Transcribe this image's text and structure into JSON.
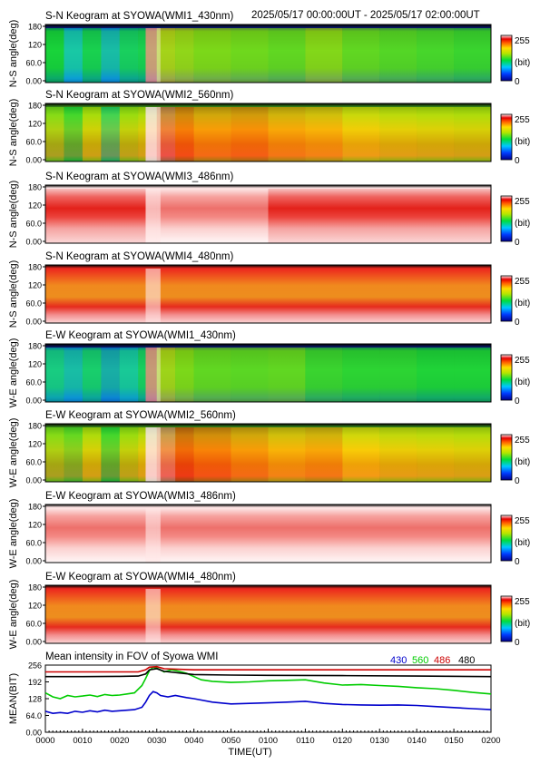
{
  "chart_data": {
    "type": "heatmap",
    "header": {
      "date_range": "2025/05/17 00:00:00UT - 2025/05/17 02:00:00UT"
    },
    "time_range_hhmm": [
      "0000",
      "0200"
    ],
    "colorbar": {
      "max": "255",
      "mid": "(bit)",
      "min": "0"
    },
    "keograms": [
      {
        "title": "S-N Keogram at SYOWA(WMI1_430nm)",
        "ylabel": "N-S angle(deg)",
        "yticks": [
          "180",
          "120",
          "60.0",
          "0.00"
        ],
        "palette": "green",
        "intensity_profile": [
          [
            0,
            0.45
          ],
          [
            5,
            0.3
          ],
          [
            10,
            0.42
          ],
          [
            15,
            0.28
          ],
          [
            20,
            0.4
          ],
          [
            25,
            0.42
          ],
          [
            27,
            0.9
          ],
          [
            30,
            0.72
          ],
          [
            35,
            0.66
          ],
          [
            40,
            0.6
          ],
          [
            50,
            0.58
          ],
          [
            60,
            0.56
          ],
          [
            70,
            0.62
          ],
          [
            80,
            0.56
          ],
          [
            90,
            0.54
          ],
          [
            100,
            0.52
          ],
          [
            110,
            0.5
          ],
          [
            120,
            0.5
          ]
        ]
      },
      {
        "title": "S-N Keogram at SYOWA(WMI2_560nm)",
        "ylabel": "N-S angle(deg)",
        "yticks": [
          "180",
          "120",
          "60.0",
          "0.00"
        ],
        "palette": "mixed",
        "intensity_profile": [
          [
            0,
            0.55
          ],
          [
            5,
            0.45
          ],
          [
            10,
            0.6
          ],
          [
            15,
            0.4
          ],
          [
            20,
            0.58
          ],
          [
            25,
            0.62
          ],
          [
            27,
            1.0
          ],
          [
            30,
            0.95
          ],
          [
            35,
            0.85
          ],
          [
            40,
            0.8
          ],
          [
            50,
            0.82
          ],
          [
            60,
            0.78
          ],
          [
            70,
            0.76
          ],
          [
            80,
            0.7
          ],
          [
            90,
            0.66
          ],
          [
            100,
            0.64
          ],
          [
            110,
            0.62
          ],
          [
            120,
            0.6
          ]
        ]
      },
      {
        "title": "S-N Keogram at SYOWA(WMI3_486nm)",
        "ylabel": "N-S angle(deg)",
        "yticks": [
          "180",
          "120",
          "60.0",
          "0.00"
        ],
        "palette": "red",
        "intensity_profile": [
          [
            0,
            0.9
          ],
          [
            27,
            0.94
          ],
          [
            30,
            0.92
          ],
          [
            60,
            0.9
          ],
          [
            120,
            0.9
          ]
        ]
      },
      {
        "title": "S-N Keogram at SYOWA(WMI4_480nm)",
        "ylabel": "N-S angle(deg)",
        "yticks": [
          "180",
          "120",
          "60.0",
          "0.00"
        ],
        "palette": "red-orange",
        "intensity_profile": [
          [
            0,
            0.8
          ],
          [
            27,
            0.88
          ],
          [
            30,
            0.82
          ],
          [
            60,
            0.8
          ],
          [
            120,
            0.8
          ]
        ]
      },
      {
        "title": "E-W Keogram at SYOWA(WMI1_430nm)",
        "ylabel": "W-E angle(deg)",
        "yticks": [
          "180",
          "120",
          "60.0",
          "0.00"
        ],
        "palette": "green",
        "intensity_profile": [
          [
            0,
            0.35
          ],
          [
            5,
            0.28
          ],
          [
            10,
            0.38
          ],
          [
            15,
            0.25
          ],
          [
            20,
            0.32
          ],
          [
            25,
            0.4
          ],
          [
            27,
            0.92
          ],
          [
            30,
            0.7
          ],
          [
            35,
            0.6
          ],
          [
            40,
            0.56
          ],
          [
            50,
            0.55
          ],
          [
            60,
            0.56
          ],
          [
            70,
            0.5
          ],
          [
            80,
            0.48
          ],
          [
            90,
            0.48
          ],
          [
            100,
            0.46
          ],
          [
            110,
            0.46
          ],
          [
            120,
            0.45
          ]
        ]
      },
      {
        "title": "E-W Keogram at SYOWA(WMI2_560nm)",
        "ylabel": "W-E angle(deg)",
        "yticks": [
          "180",
          "120",
          "60.0",
          "0.00"
        ],
        "palette": "mixed",
        "intensity_profile": [
          [
            0,
            0.55
          ],
          [
            5,
            0.5
          ],
          [
            10,
            0.62
          ],
          [
            15,
            0.45
          ],
          [
            20,
            0.58
          ],
          [
            25,
            0.65
          ],
          [
            27,
            1.0
          ],
          [
            30,
            0.96
          ],
          [
            35,
            0.88
          ],
          [
            40,
            0.84
          ],
          [
            50,
            0.8
          ],
          [
            60,
            0.76
          ],
          [
            70,
            0.78
          ],
          [
            80,
            0.72
          ],
          [
            90,
            0.68
          ],
          [
            100,
            0.66
          ],
          [
            110,
            0.64
          ],
          [
            120,
            0.62
          ]
        ]
      },
      {
        "title": "E-W Keogram at SYOWA(WMI3_486nm)",
        "ylabel": "W-E angle(deg)",
        "yticks": [
          "180",
          "120",
          "60.0",
          "0.00"
        ],
        "palette": "red",
        "intensity_profile": [
          [
            0,
            0.92
          ],
          [
            27,
            0.95
          ],
          [
            30,
            0.92
          ],
          [
            60,
            0.92
          ],
          [
            120,
            0.92
          ]
        ]
      },
      {
        "title": "E-W Keogram at SYOWA(WMI4_480nm)",
        "ylabel": "W-E angle(deg)",
        "yticks": [
          "180",
          "120",
          "60.0",
          "0.00"
        ],
        "palette": "red-orange",
        "intensity_profile": [
          [
            0,
            0.82
          ],
          [
            27,
            0.9
          ],
          [
            30,
            0.84
          ],
          [
            60,
            0.82
          ],
          [
            120,
            0.82
          ]
        ]
      }
    ],
    "mean_plot": {
      "type": "line",
      "title": "Mean intensity in FOV of Syowa WMI",
      "ylabel": "MEAN(BIT)",
      "xlabel": "TIME(UT)",
      "ylim": [
        0,
        256
      ],
      "yticks": [
        "256",
        "192",
        "128",
        "64.0",
        "0.00"
      ],
      "xticks": [
        "0000",
        "0010",
        "0020",
        "0030",
        "0040",
        "0050",
        "0100",
        "0110",
        "0120",
        "0130",
        "0140",
        "0150",
        "0200"
      ],
      "legend": [
        "430",
        "560",
        "486",
        "480"
      ],
      "series": [
        {
          "name": "430",
          "color": "#0000cc",
          "points": [
            [
              0,
              80
            ],
            [
              2,
              72
            ],
            [
              4,
              75
            ],
            [
              6,
              72
            ],
            [
              8,
              80
            ],
            [
              10,
              76
            ],
            [
              12,
              82
            ],
            [
              14,
              78
            ],
            [
              16,
              84
            ],
            [
              18,
              80
            ],
            [
              20,
              82
            ],
            [
              22,
              84
            ],
            [
              24,
              86
            ],
            [
              26,
              95
            ],
            [
              27,
              115
            ],
            [
              28,
              140
            ],
            [
              29,
              155
            ],
            [
              30,
              150
            ],
            [
              31,
              140
            ],
            [
              33,
              135
            ],
            [
              35,
              140
            ],
            [
              38,
              132
            ],
            [
              40,
              128
            ],
            [
              45,
              115
            ],
            [
              50,
              108
            ],
            [
              55,
              110
            ],
            [
              60,
              112
            ],
            [
              65,
              115
            ],
            [
              70,
              118
            ],
            [
              75,
              110
            ],
            [
              80,
              106
            ],
            [
              85,
              104
            ],
            [
              90,
              103
            ],
            [
              95,
              104
            ],
            [
              100,
              102
            ],
            [
              105,
              98
            ],
            [
              110,
              94
            ],
            [
              115,
              90
            ],
            [
              120,
              86
            ]
          ]
        },
        {
          "name": "560",
          "color": "#00cc00",
          "points": [
            [
              0,
              150
            ],
            [
              2,
              135
            ],
            [
              4,
              128
            ],
            [
              6,
              140
            ],
            [
              8,
              135
            ],
            [
              10,
              138
            ],
            [
              12,
              142
            ],
            [
              14,
              136
            ],
            [
              16,
              144
            ],
            [
              18,
              140
            ],
            [
              20,
              142
            ],
            [
              22,
              146
            ],
            [
              24,
              150
            ],
            [
              26,
              178
            ],
            [
              27,
              205
            ],
            [
              28,
              235
            ],
            [
              29,
              248
            ],
            [
              30,
              245
            ],
            [
              32,
              230
            ],
            [
              34,
              238
            ],
            [
              36,
              232
            ],
            [
              38,
              225
            ],
            [
              40,
              212
            ],
            [
              42,
              200
            ],
            [
              45,
              194
            ],
            [
              50,
              190
            ],
            [
              55,
              192
            ],
            [
              60,
              196
            ],
            [
              65,
              198
            ],
            [
              70,
              200
            ],
            [
              75,
              188
            ],
            [
              80,
              180
            ],
            [
              85,
              182
            ],
            [
              90,
              178
            ],
            [
              95,
              175
            ],
            [
              100,
              170
            ],
            [
              105,
              166
            ],
            [
              110,
              160
            ],
            [
              115,
              152
            ],
            [
              120,
              146
            ]
          ]
        },
        {
          "name": "486",
          "color": "#cc0000",
          "points": [
            [
              0,
              230
            ],
            [
              10,
              230
            ],
            [
              20,
              230
            ],
            [
              25,
              230
            ],
            [
              27,
              238
            ],
            [
              28,
              248
            ],
            [
              30,
              250
            ],
            [
              32,
              242
            ],
            [
              40,
              238
            ],
            [
              60,
              238
            ],
            [
              80,
              238
            ],
            [
              100,
              238
            ],
            [
              120,
              238
            ]
          ]
        },
        {
          "name": "480",
          "color": "#000000",
          "points": [
            [
              0,
              212
            ],
            [
              10,
              212
            ],
            [
              20,
              213
            ],
            [
              25,
              214
            ],
            [
              27,
              222
            ],
            [
              28,
              238
            ],
            [
              30,
              242
            ],
            [
              32,
              232
            ],
            [
              40,
              220
            ],
            [
              50,
              218
            ],
            [
              60,
              217
            ],
            [
              80,
              216
            ],
            [
              100,
              214
            ],
            [
              120,
              212
            ]
          ]
        }
      ]
    }
  }
}
